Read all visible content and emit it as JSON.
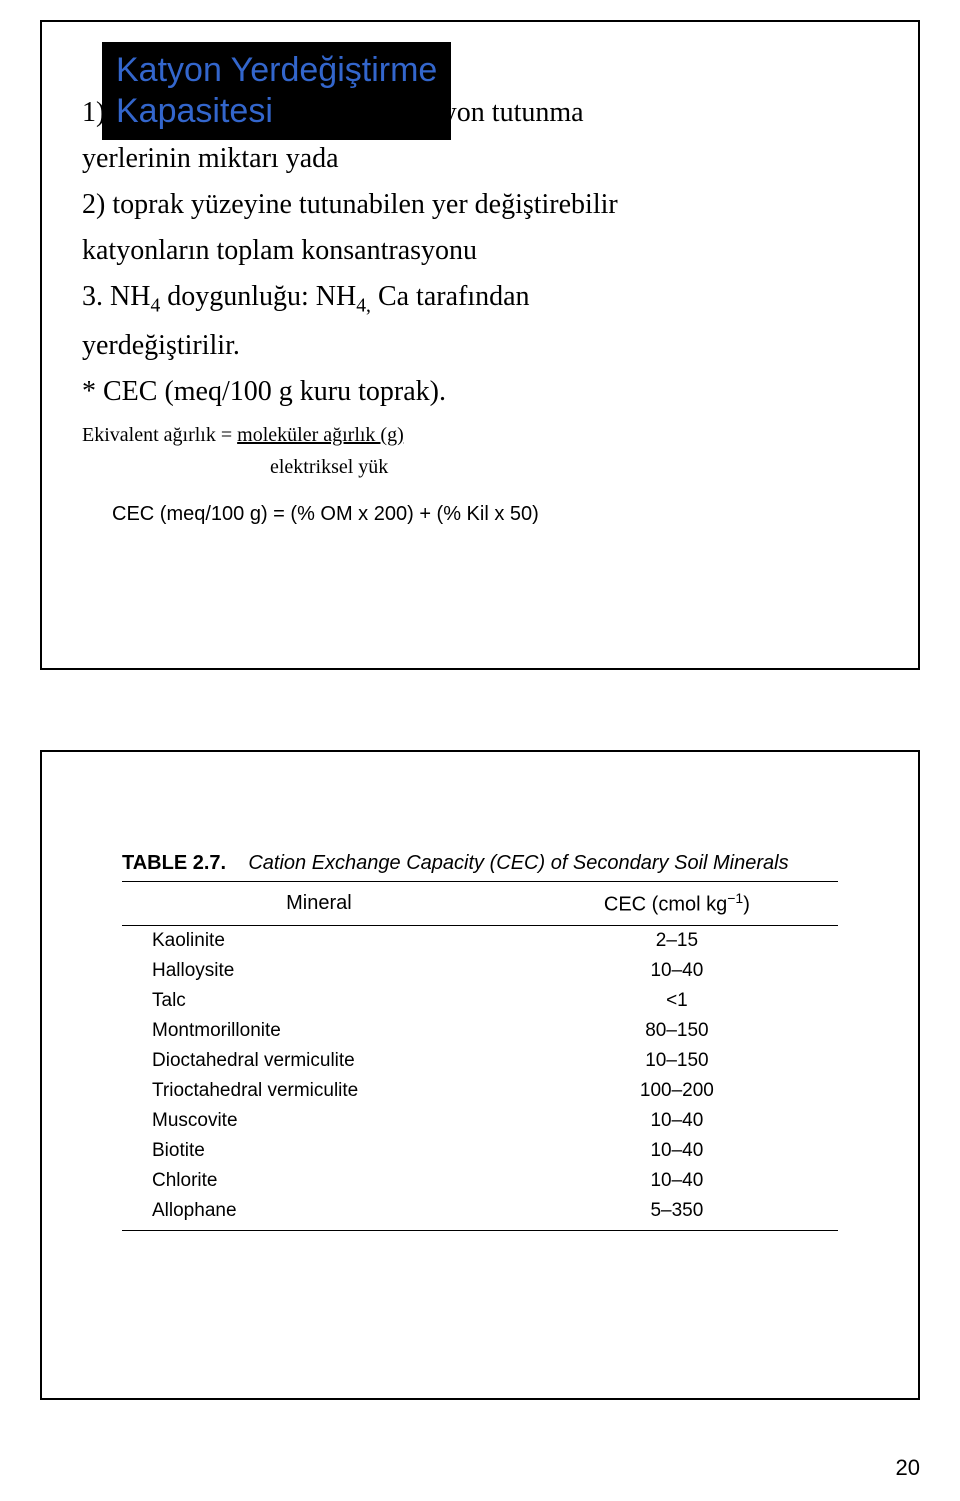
{
  "slide1": {
    "title_line1": "Katyon Yerdeğiştirme",
    "title_line2": "Kapasitesi",
    "line1": "1) birim toprak ağırlığındaki katyon tutunma",
    "line2": "yerlerinin miktarı yada",
    "line3": "2) toprak yüzeyine tutunabilen yer değiştirebilir",
    "line4": "katyonların toplam konsantrasyonu",
    "line5_pre": "3. NH",
    "line5_sub1": "4",
    "line5_mid": " doygunluğu: NH",
    "line5_sub2": "4,",
    "line5_post": " Ca tarafından",
    "line6": "yerdeğiştirilir.",
    "line7": "* CEC  (meq/100 g kuru toprak).",
    "eq_left": "Ekivalent ağırlık  =  ",
    "eq_num": "moleküler ağırlık (g)",
    "eq_den": "elektriksel yük",
    "formula": "CEC (meq/100 g) = (% OM x 200) + (% Kil x 50)"
  },
  "slide2": {
    "caption_label": "TABLE 2.7.",
    "caption_desc": "Cation Exchange Capacity (CEC) of Secondary Soil Minerals",
    "header_col1": "Mineral",
    "header_col2_pre": "CEC (cmol kg",
    "header_col2_sup": "−1",
    "header_col2_post": ")",
    "rows": [
      {
        "mineral": "Kaolinite",
        "cec": "2–15"
      },
      {
        "mineral": "Halloysite",
        "cec": "10–40"
      },
      {
        "mineral": "Talc",
        "cec": "<1"
      },
      {
        "mineral": "Montmorillonite",
        "cec": "80–150"
      },
      {
        "mineral": "Dioctahedral vermiculite",
        "cec": "10–150"
      },
      {
        "mineral": "Trioctahedral vermiculite",
        "cec": "100–200"
      },
      {
        "mineral": "Muscovite",
        "cec": "10–40"
      },
      {
        "mineral": "Biotite",
        "cec": "10–40"
      },
      {
        "mineral": "Chlorite",
        "cec": "10–40"
      },
      {
        "mineral": "Allophane",
        "cec": "5–350"
      }
    ]
  },
  "page_number": "20"
}
